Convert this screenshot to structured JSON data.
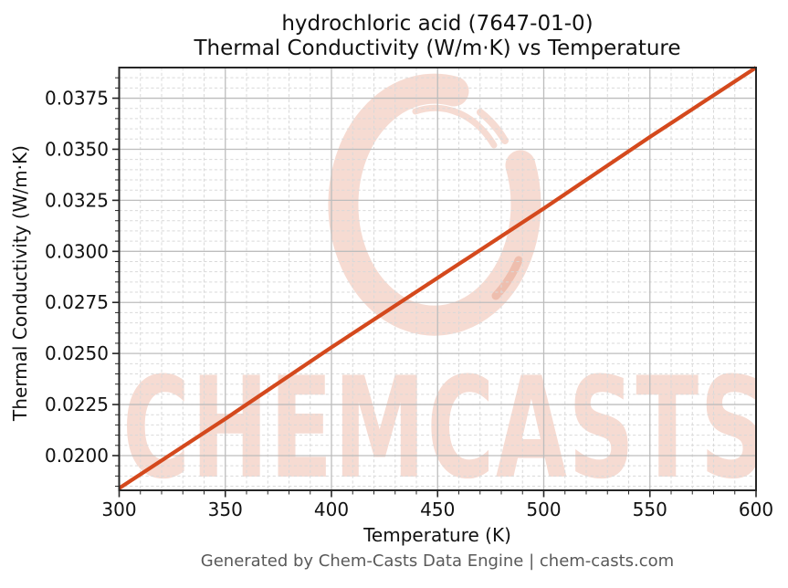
{
  "header": {
    "title_line1": "hydrochloric acid (7647-01-0)",
    "title_line2": "Thermal Conductivity (W/m·K) vs Temperature"
  },
  "footer": {
    "text": "Generated by Chem-Casts Data Engine | chem-casts.com"
  },
  "watermark": {
    "text": "CHEMCASTS",
    "logo": "chemcasts-ring-logo"
  },
  "colors": {
    "line": "#d4491d",
    "watermark": "rgba(212,73,29,0.20)",
    "grid_major": "#bdbdbd",
    "grid_minor": "#d9d9d9",
    "spine": "#262626",
    "text": "#111111",
    "muted": "#595959",
    "background": "#ffffff"
  },
  "chart_data": {
    "type": "line",
    "title": "hydrochloric acid (7647-01-0)\nThermal Conductivity (W/m·K) vs Temperature",
    "xlabel": "Temperature (K)",
    "ylabel": "Thermal Conductivity (W/m·K)",
    "xlim": [
      300,
      600
    ],
    "ylim": [
      0.0183,
      0.039
    ],
    "x_ticks": [
      300,
      350,
      400,
      450,
      500,
      550,
      600
    ],
    "x_tick_labels": [
      "300",
      "350",
      "400",
      "450",
      "500",
      "550",
      "600"
    ],
    "y_ticks": [
      0.02,
      0.0225,
      0.025,
      0.0275,
      0.03,
      0.0325,
      0.035,
      0.0375
    ],
    "y_tick_labels": [
      "0.0200",
      "0.0225",
      "0.0250",
      "0.0275",
      "0.0300",
      "0.0325",
      "0.0350",
      "0.0375"
    ],
    "x_minor_step": 10,
    "y_minor_step": 0.0005,
    "grid": {
      "major": true,
      "minor": true,
      "minor_style": "dashed"
    },
    "legend": "none",
    "series": [
      {
        "name": "thermal-conductivity",
        "x": [
          300,
          350,
          400,
          450,
          500,
          550,
          600
        ],
        "y": [
          0.0184,
          0.0218,
          0.0253,
          0.0287,
          0.0321,
          0.0356,
          0.039
        ]
      }
    ]
  }
}
